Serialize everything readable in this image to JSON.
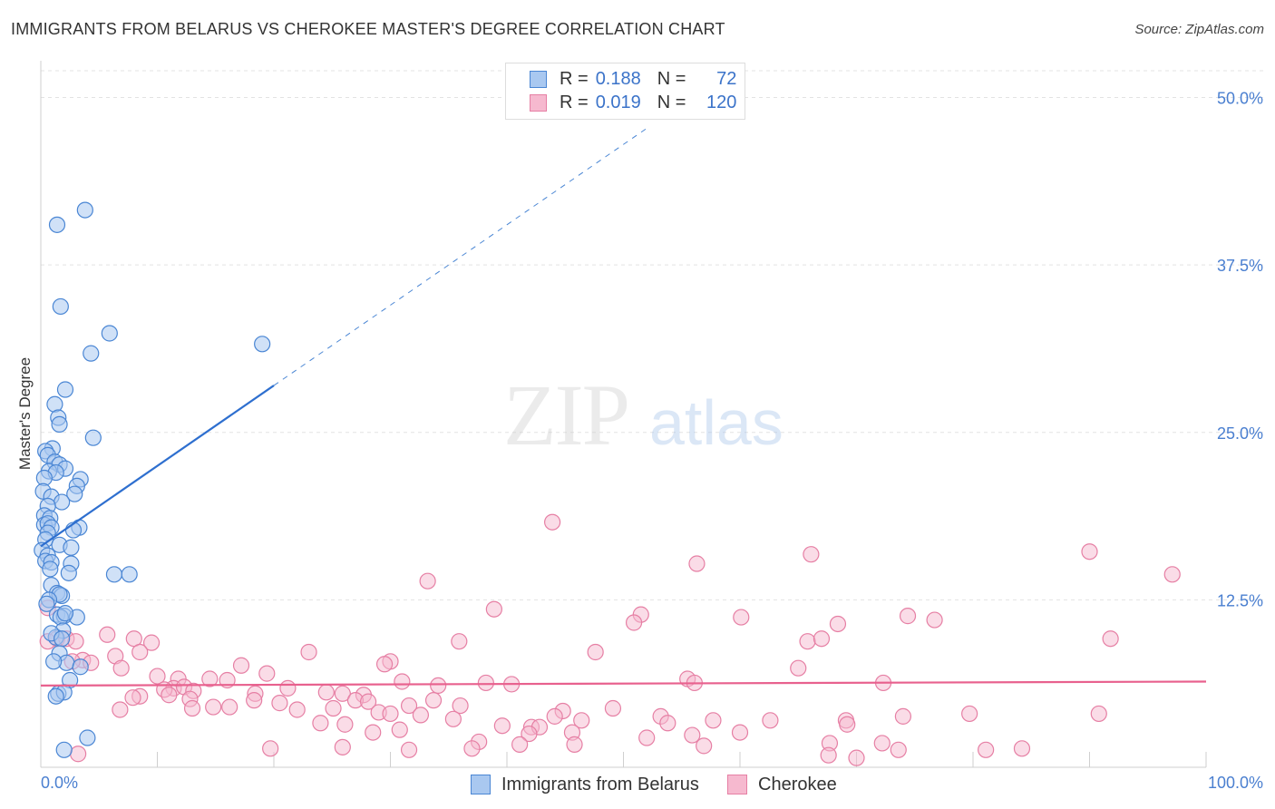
{
  "title": "IMMIGRANTS FROM BELARUS VS CHEROKEE MASTER'S DEGREE CORRELATION CHART",
  "source": "Source: ZipAtlas.com",
  "watermark": {
    "zip": "ZIP",
    "atlas": "atlas"
  },
  "legend": {
    "r_label": "R =",
    "n_label": "N =",
    "rows": [
      {
        "name": "Immigrants from Belarus",
        "r": "0.188",
        "n": "72"
      },
      {
        "name": "Cherokee",
        "r": "0.019",
        "n": "120"
      }
    ]
  },
  "colors": {
    "blue_fill": "#a9c8f0",
    "blue_stroke": "#4a86d4",
    "blue_line": "#2e6fcf",
    "pink_fill": "#f6b9cf",
    "pink_stroke": "#e67fa4",
    "pink_line": "#e8618e",
    "grid": "#e3e3e3",
    "axis_text": "#4a7fd0"
  },
  "chart_data": {
    "type": "scatter",
    "title": "IMMIGRANTS FROM BELARUS VS CHEROKEE MASTER'S DEGREE CORRELATION CHART",
    "xlabel": "",
    "ylabel": "Master's Degree",
    "xlim": [
      0,
      100
    ],
    "ylim": [
      0,
      52
    ],
    "x_tick_labels": [
      "0.0%",
      "100.0%"
    ],
    "y_ticks": [
      12.5,
      25.0,
      37.5,
      50.0
    ],
    "y_tick_labels": [
      "12.5%",
      "25.0%",
      "37.5%",
      "50.0%"
    ],
    "grid": true,
    "legend_position": "top-center",
    "series": [
      {
        "name": "Immigrants from Belarus",
        "r": 0.188,
        "n": 72,
        "trend": {
          "x0": 0,
          "y0": 16.5,
          "x1": 20,
          "y1": 28.5,
          "dashed_to_x": 52
        },
        "points": [
          [
            1.4,
            40.5
          ],
          [
            3.8,
            41.6
          ],
          [
            1.7,
            34.4
          ],
          [
            5.9,
            32.4
          ],
          [
            19.0,
            31.6
          ],
          [
            4.3,
            30.9
          ],
          [
            2.1,
            28.2
          ],
          [
            1.2,
            27.1
          ],
          [
            1.5,
            26.1
          ],
          [
            1.6,
            25.6
          ],
          [
            4.5,
            24.6
          ],
          [
            1.0,
            23.8
          ],
          [
            0.4,
            23.6
          ],
          [
            0.6,
            23.3
          ],
          [
            1.2,
            22.8
          ],
          [
            1.6,
            22.6
          ],
          [
            0.7,
            22.1
          ],
          [
            2.1,
            22.3
          ],
          [
            1.3,
            22.0
          ],
          [
            0.3,
            21.6
          ],
          [
            3.4,
            21.5
          ],
          [
            3.1,
            21.0
          ],
          [
            2.9,
            20.4
          ],
          [
            0.2,
            20.6
          ],
          [
            0.9,
            20.2
          ],
          [
            1.8,
            19.8
          ],
          [
            0.6,
            19.5
          ],
          [
            0.3,
            18.8
          ],
          [
            0.8,
            18.6
          ],
          [
            0.3,
            18.1
          ],
          [
            0.6,
            18.2
          ],
          [
            0.9,
            17.9
          ],
          [
            3.3,
            17.9
          ],
          [
            2.8,
            17.7
          ],
          [
            0.6,
            17.5
          ],
          [
            0.4,
            17.0
          ],
          [
            1.6,
            16.6
          ],
          [
            2.6,
            16.4
          ],
          [
            0.1,
            16.2
          ],
          [
            0.6,
            15.8
          ],
          [
            0.4,
            15.4
          ],
          [
            0.9,
            15.3
          ],
          [
            2.6,
            15.2
          ],
          [
            2.4,
            14.5
          ],
          [
            6.3,
            14.4
          ],
          [
            7.6,
            14.4
          ],
          [
            0.8,
            14.8
          ],
          [
            0.9,
            13.6
          ],
          [
            1.4,
            13.0
          ],
          [
            1.8,
            12.8
          ],
          [
            1.6,
            12.9
          ],
          [
            0.7,
            12.5
          ],
          [
            1.4,
            11.4
          ],
          [
            2.0,
            11.3
          ],
          [
            1.7,
            11.2
          ],
          [
            3.1,
            11.2
          ],
          [
            1.9,
            10.2
          ],
          [
            1.3,
            9.7
          ],
          [
            0.9,
            10.0
          ],
          [
            1.8,
            9.6
          ],
          [
            1.6,
            8.5
          ],
          [
            2.2,
            7.8
          ],
          [
            1.1,
            7.9
          ],
          [
            3.4,
            7.5
          ],
          [
            2.5,
            6.5
          ],
          [
            1.5,
            5.5
          ],
          [
            2.0,
            5.6
          ],
          [
            4.0,
            2.2
          ],
          [
            2.0,
            1.3
          ],
          [
            1.3,
            5.3
          ],
          [
            0.5,
            12.2
          ],
          [
            2.1,
            11.5
          ]
        ]
      },
      {
        "name": "Cherokee",
        "r": 0.019,
        "n": 120,
        "trend": {
          "x0": 0,
          "y0": 6.1,
          "x1": 100,
          "y1": 6.4
        },
        "points": [
          [
            43.9,
            18.3
          ],
          [
            90.0,
            16.1
          ],
          [
            66.1,
            15.9
          ],
          [
            56.3,
            15.2
          ],
          [
            97.1,
            14.4
          ],
          [
            33.2,
            13.9
          ],
          [
            0.6,
            11.9
          ],
          [
            38.9,
            11.8
          ],
          [
            51.5,
            11.4
          ],
          [
            60.1,
            11.2
          ],
          [
            74.4,
            11.3
          ],
          [
            76.7,
            11.0
          ],
          [
            50.9,
            10.8
          ],
          [
            68.4,
            10.7
          ],
          [
            5.7,
            9.9
          ],
          [
            8.0,
            9.6
          ],
          [
            1.4,
            9.6
          ],
          [
            2.2,
            9.6
          ],
          [
            0.6,
            9.4
          ],
          [
            3.0,
            9.4
          ],
          [
            9.5,
            9.3
          ],
          [
            35.9,
            9.4
          ],
          [
            65.8,
            9.4
          ],
          [
            91.8,
            9.6
          ],
          [
            67.0,
            9.6
          ],
          [
            6.4,
            8.3
          ],
          [
            8.5,
            8.6
          ],
          [
            23.0,
            8.6
          ],
          [
            47.6,
            8.6
          ],
          [
            3.6,
            8.0
          ],
          [
            2.7,
            7.9
          ],
          [
            4.3,
            7.8
          ],
          [
            30.0,
            7.9
          ],
          [
            29.5,
            7.7
          ],
          [
            17.2,
            7.6
          ],
          [
            6.9,
            7.4
          ],
          [
            65.0,
            7.4
          ],
          [
            10.0,
            6.8
          ],
          [
            19.4,
            7.0
          ],
          [
            16.0,
            6.5
          ],
          [
            14.5,
            6.6
          ],
          [
            11.8,
            6.6
          ],
          [
            31.0,
            6.4
          ],
          [
            55.5,
            6.6
          ],
          [
            56.1,
            6.3
          ],
          [
            72.3,
            6.3
          ],
          [
            38.2,
            6.3
          ],
          [
            34.1,
            6.1
          ],
          [
            40.4,
            6.2
          ],
          [
            11.4,
            5.9
          ],
          [
            12.3,
            6.0
          ],
          [
            21.2,
            5.9
          ],
          [
            10.6,
            5.8
          ],
          [
            11.0,
            5.4
          ],
          [
            13.1,
            5.7
          ],
          [
            18.4,
            5.5
          ],
          [
            24.5,
            5.6
          ],
          [
            25.9,
            5.5
          ],
          [
            27.7,
            5.4
          ],
          [
            8.5,
            5.3
          ],
          [
            7.9,
            5.2
          ],
          [
            12.8,
            5.1
          ],
          [
            18.3,
            5.0
          ],
          [
            20.5,
            4.8
          ],
          [
            27.0,
            5.0
          ],
          [
            28.1,
            4.9
          ],
          [
            33.7,
            5.0
          ],
          [
            36.0,
            4.6
          ],
          [
            31.6,
            4.6
          ],
          [
            25.1,
            4.4
          ],
          [
            22.0,
            4.3
          ],
          [
            13.0,
            4.4
          ],
          [
            14.8,
            4.5
          ],
          [
            16.2,
            4.5
          ],
          [
            6.8,
            4.3
          ],
          [
            49.1,
            4.4
          ],
          [
            44.8,
            4.2
          ],
          [
            29.0,
            4.1
          ],
          [
            30.0,
            4.0
          ],
          [
            32.6,
            3.9
          ],
          [
            44.1,
            3.8
          ],
          [
            53.2,
            3.8
          ],
          [
            57.7,
            3.5
          ],
          [
            74.0,
            3.8
          ],
          [
            79.7,
            4.0
          ],
          [
            90.8,
            4.0
          ],
          [
            69.1,
            3.5
          ],
          [
            46.4,
            3.5
          ],
          [
            35.4,
            3.6
          ],
          [
            24.0,
            3.3
          ],
          [
            26.1,
            3.2
          ],
          [
            39.6,
            3.1
          ],
          [
            42.1,
            3.0
          ],
          [
            42.8,
            3.0
          ],
          [
            53.8,
            3.3
          ],
          [
            62.6,
            3.5
          ],
          [
            69.2,
            3.2
          ],
          [
            28.5,
            2.6
          ],
          [
            30.8,
            2.8
          ],
          [
            45.6,
            2.6
          ],
          [
            55.9,
            2.4
          ],
          [
            52.0,
            2.2
          ],
          [
            60.0,
            2.6
          ],
          [
            41.9,
            2.5
          ],
          [
            37.6,
            1.9
          ],
          [
            41.1,
            1.7
          ],
          [
            56.9,
            1.6
          ],
          [
            45.8,
            1.7
          ],
          [
            67.7,
            1.8
          ],
          [
            72.2,
            1.8
          ],
          [
            73.6,
            1.3
          ],
          [
            84.2,
            1.4
          ],
          [
            81.1,
            1.3
          ],
          [
            19.7,
            1.4
          ],
          [
            25.9,
            1.5
          ],
          [
            31.6,
            1.3
          ],
          [
            37.0,
            1.4
          ],
          [
            67.6,
            0.9
          ],
          [
            70.0,
            0.7
          ],
          [
            3.2,
            1.0
          ]
        ]
      }
    ]
  }
}
